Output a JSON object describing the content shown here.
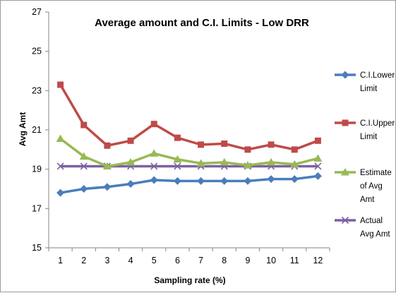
{
  "chart_data": {
    "type": "line",
    "title": "Average amount and C.I. Limits - Low DRR",
    "xlabel": "Sampling rate (%)",
    "ylabel": "Avg Amt",
    "categories": [
      "1",
      "2",
      "3",
      "4",
      "5",
      "6",
      "7",
      "8",
      "9",
      "10",
      "11",
      "12"
    ],
    "ylim": [
      15,
      27
    ],
    "yticks": [
      "15",
      "17",
      "19",
      "21",
      "23",
      "25",
      "27"
    ],
    "grid": false,
    "legend_position": "right",
    "series": [
      {
        "name": "C.I.Lower Limit",
        "legend_lines": [
          "C.I.Lower",
          "Limit"
        ],
        "color": "#4a7ebb",
        "marker": "diamond",
        "values": [
          17.8,
          18.0,
          18.1,
          18.25,
          18.45,
          18.4,
          18.4,
          18.4,
          18.4,
          18.5,
          18.5,
          18.65
        ]
      },
      {
        "name": "C.I.Upper Limit",
        "legend_lines": [
          "C.I.Upper",
          "Limit"
        ],
        "color": "#be4b48",
        "marker": "square",
        "values": [
          23.3,
          21.25,
          20.2,
          20.45,
          21.3,
          20.6,
          20.25,
          20.3,
          20.0,
          20.25,
          20.0,
          20.45
        ]
      },
      {
        "name": "Estimate of Avg Amt",
        "legend_lines": [
          "Estimate",
          "of Avg",
          "Amt"
        ],
        "color": "#98b954",
        "marker": "triangle",
        "values": [
          20.55,
          19.65,
          19.15,
          19.35,
          19.8,
          19.5,
          19.3,
          19.35,
          19.2,
          19.35,
          19.25,
          19.55
        ]
      },
      {
        "name": "Actual Avg Amt",
        "legend_lines": [
          "Actual",
          "Avg Amt"
        ],
        "color": "#7d60a0",
        "marker": "x",
        "values": [
          19.15,
          19.15,
          19.15,
          19.15,
          19.15,
          19.15,
          19.15,
          19.15,
          19.15,
          19.15,
          19.15,
          19.15
        ]
      }
    ]
  }
}
